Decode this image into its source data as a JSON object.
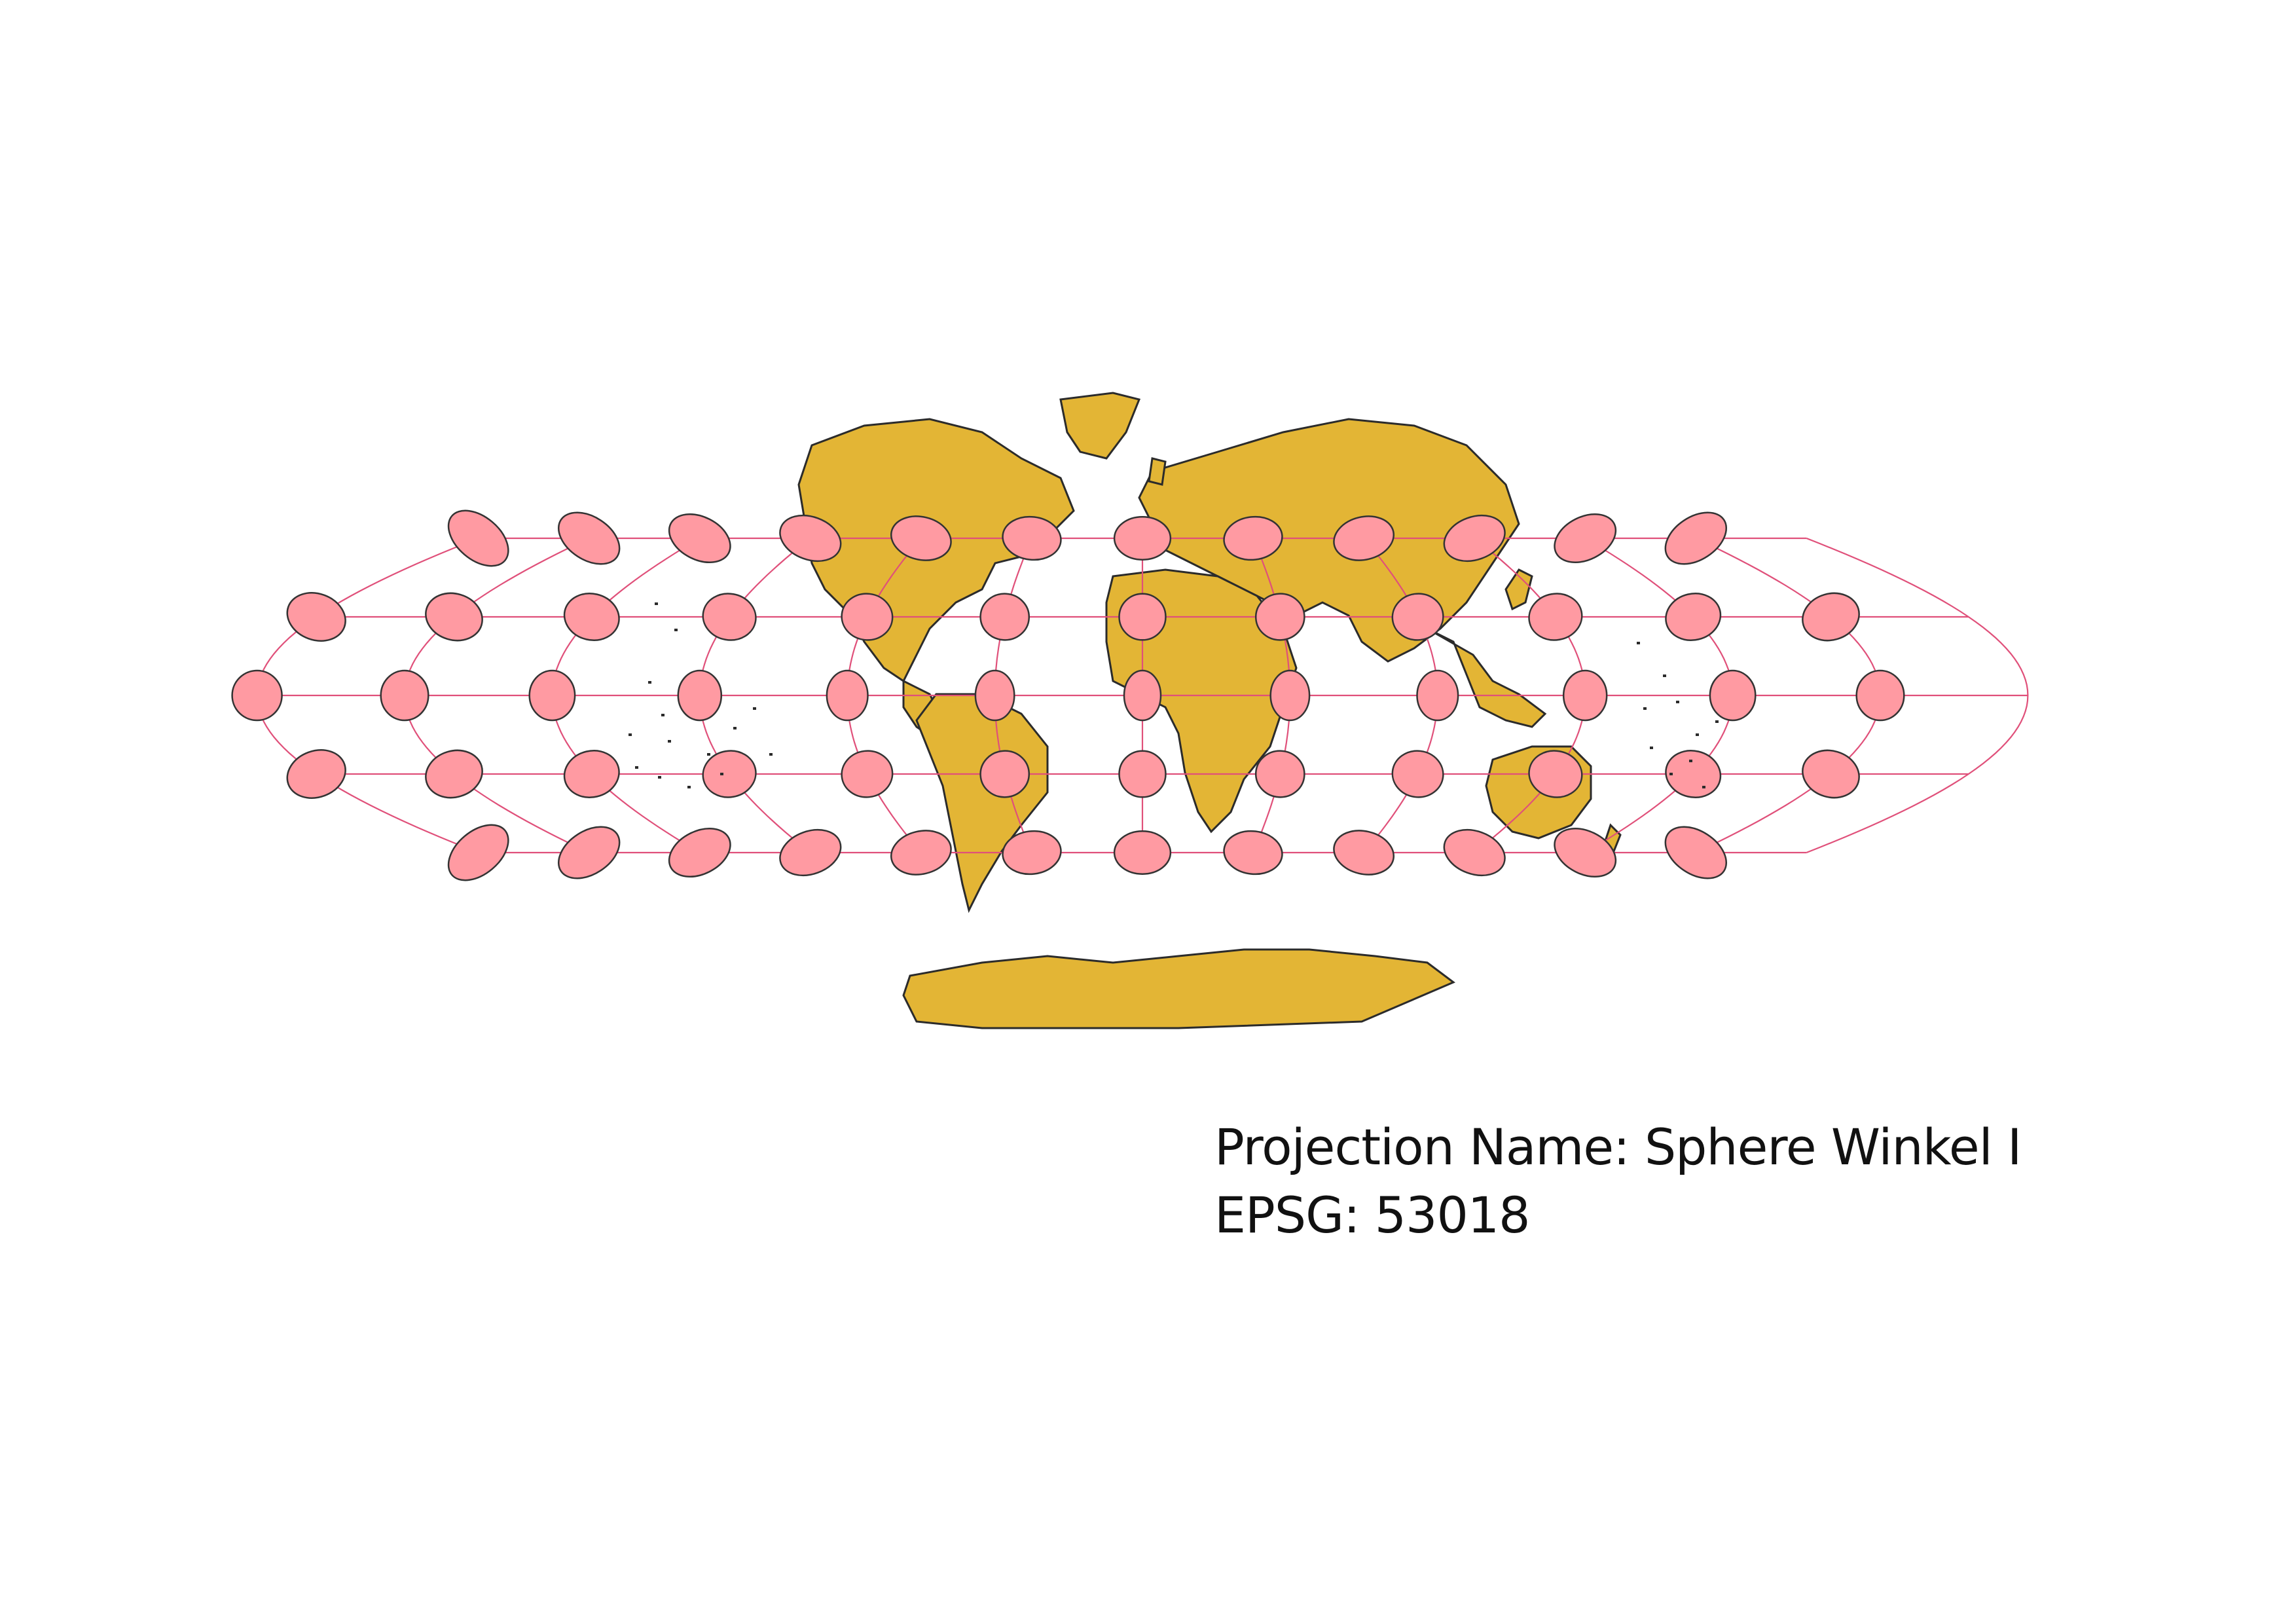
{
  "caption": {
    "projection_line": "Projection Name: Sphere Winkel I",
    "epsg_line": "EPSG: 53018"
  },
  "map": {
    "projection": "Sphere Winkel I",
    "epsg": "53018",
    "land_color": "#E3B535",
    "land_outline_color": "#2B2B2B",
    "graticule_color": "#E0507A",
    "ellipse_fill_color": "#FF9AA2",
    "ellipse_outline_color": "#333333",
    "ellipse_latitudes": [
      60,
      30,
      0,
      -30,
      -60
    ],
    "ellipse_longitudes": [
      -150,
      -120,
      -90,
      -60,
      -30,
      0,
      30,
      60,
      90,
      120,
      150,
      180
    ],
    "tissot_indicatrix": true
  }
}
